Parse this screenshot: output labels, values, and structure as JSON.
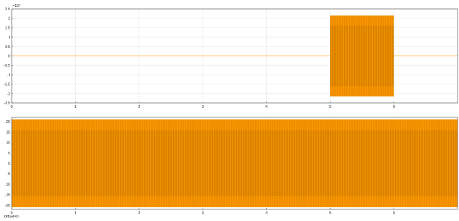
{
  "footer": {
    "offset_label": "Offset=0"
  },
  "colors": {
    "signal": "#ff9900",
    "signal_dark": "#5a3a00",
    "grid": "#e6e6e6",
    "axis": "#404040",
    "background": "#ffffff"
  },
  "chart_data": [
    {
      "type": "line",
      "title": "",
      "xlabel": "",
      "ylabel": "",
      "exponent_label": "×10⁴",
      "xlim": [
        0,
        7
      ],
      "ylim": [
        -2.5,
        2.5
      ],
      "grid": true,
      "x_ticks": [
        0,
        1,
        2,
        3,
        4,
        5,
        6
      ],
      "x_tick_labels": [
        "0",
        "1",
        "2",
        "3",
        "4",
        "5",
        "6"
      ],
      "y_ticks": [
        2.5,
        2,
        1.5,
        1,
        0.5,
        0,
        -0.5,
        -1,
        -1.5,
        -2,
        -2.5
      ],
      "y_tick_labels": [
        "2.5",
        "2",
        "1.5",
        "1",
        "0.5",
        "0",
        "-0.5",
        "-1",
        "-1.5",
        "-2",
        "-2.5"
      ],
      "series": [
        {
          "style": "oscillating",
          "baseline": 0,
          "segments": [
            {
              "x_start": 0,
              "x_end": 5,
              "amplitude": 0
            },
            {
              "x_start": 5,
              "x_end": 6,
              "amplitude": 2.15
            },
            {
              "x_start": 6,
              "x_end": 7,
              "amplitude": 0
            }
          ]
        }
      ]
    },
    {
      "type": "line",
      "title": "",
      "xlabel": "",
      "ylabel": "",
      "xlim": [
        0,
        7
      ],
      "ylim": [
        -22,
        22
      ],
      "grid": true,
      "x_ticks": [
        0,
        1,
        2,
        3,
        4,
        5,
        6
      ],
      "x_tick_labels": [
        "0",
        "1",
        "2",
        "3",
        "4",
        "5",
        "6"
      ],
      "y_ticks": [
        20,
        15,
        10,
        5,
        0,
        -5,
        -10,
        -15,
        -20
      ],
      "y_tick_labels": [
        "20",
        "15",
        "10",
        "5",
        "0",
        "-5",
        "-10",
        "-15",
        "-20"
      ],
      "series": [
        {
          "style": "oscillating",
          "baseline": 0,
          "segments": [
            {
              "x_start": 0,
              "x_end": 7,
              "amplitude": 21
            }
          ]
        }
      ]
    }
  ]
}
